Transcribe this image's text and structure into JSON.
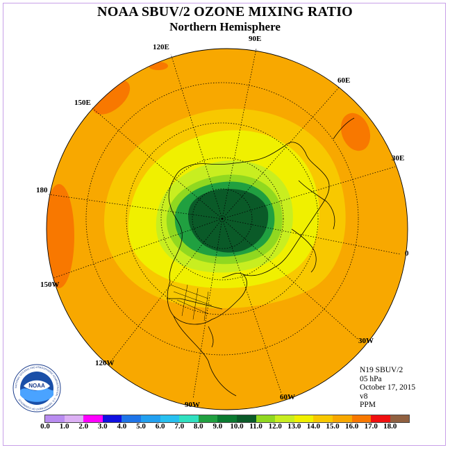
{
  "header": {
    "title": "NOAA SBUV/2 OZONE MIXING RATIO",
    "subtitle": "Northern Hemisphere"
  },
  "longitude_labels": [
    "90E",
    "60E",
    "30E",
    "0",
    "30W",
    "60W",
    "90W",
    "120W",
    "150W",
    "180",
    "150E",
    "120E"
  ],
  "info": {
    "satellite": "N19 SBUV/2",
    "level": "05 hPa",
    "date": "October 17, 2015",
    "version": "v8",
    "units": "PPM"
  },
  "logo": {
    "text": "NOAA",
    "ring_text": "NATIONAL OCEANIC AND ATMOSPHERIC ADMINISTRATION · U.S. DEPARTMENT OF COMMERCE"
  },
  "legend": {
    "colors": [
      "#b98cf0",
      "#dcb0f4",
      "#ff00ff",
      "#1010e0",
      "#1e74e8",
      "#22a0f0",
      "#28c0f0",
      "#30e0c0",
      "#20a040",
      "#0a7a30",
      "#0a5a28",
      "#90d820",
      "#c8ee20",
      "#f0f000",
      "#f8c800",
      "#f8a800",
      "#f87800",
      "#f01010",
      "#906040"
    ],
    "labels": [
      "0.0",
      "1.0",
      "2.0",
      "3.0",
      "4.0",
      "5.0",
      "6.0",
      "7.0",
      "8.0",
      "9.0",
      "10.0",
      "11.0",
      "12.0",
      "13.0",
      "14.0",
      "15.0",
      "16.0",
      "17.0",
      "18.0"
    ]
  }
}
